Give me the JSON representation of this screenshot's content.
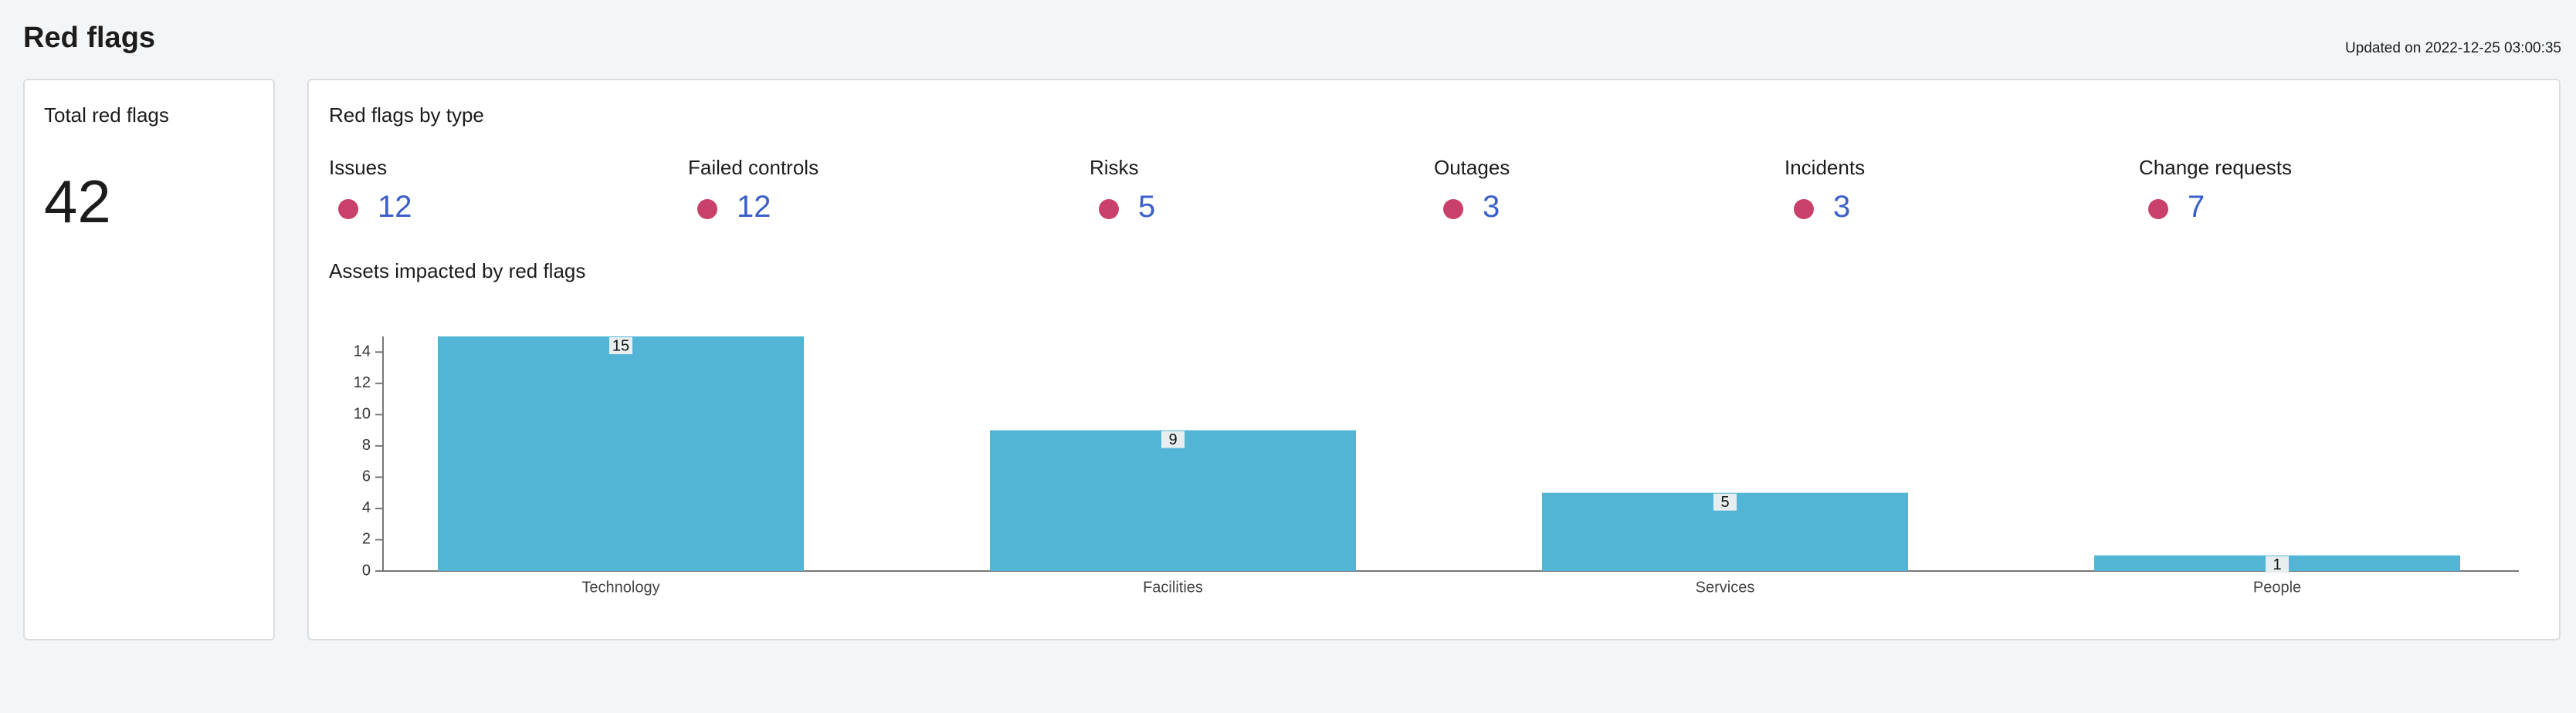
{
  "header": {
    "title": "Red flags",
    "updated": "Updated on 2022-12-25 03:00:35"
  },
  "total": {
    "label": "Total red flags",
    "value": 42
  },
  "by_type": {
    "title": "Red flags by type",
    "items": [
      {
        "name": "Issues",
        "value": 12
      },
      {
        "name": "Failed controls",
        "value": 12
      },
      {
        "name": "Risks",
        "value": 5
      },
      {
        "name": "Outages",
        "value": 3
      },
      {
        "name": "Incidents",
        "value": 3
      },
      {
        "name": "Change requests",
        "value": 7
      }
    ]
  },
  "chart_data": {
    "type": "bar",
    "title": "Assets impacted by red flags",
    "categories": [
      "Technology",
      "Facilities",
      "Services",
      "People"
    ],
    "values": [
      15,
      9,
      5,
      1
    ],
    "color": "#52b5d5",
    "ylim": [
      0,
      15
    ],
    "yticks": [
      0,
      2,
      4,
      6,
      8,
      10,
      12,
      14
    ]
  }
}
